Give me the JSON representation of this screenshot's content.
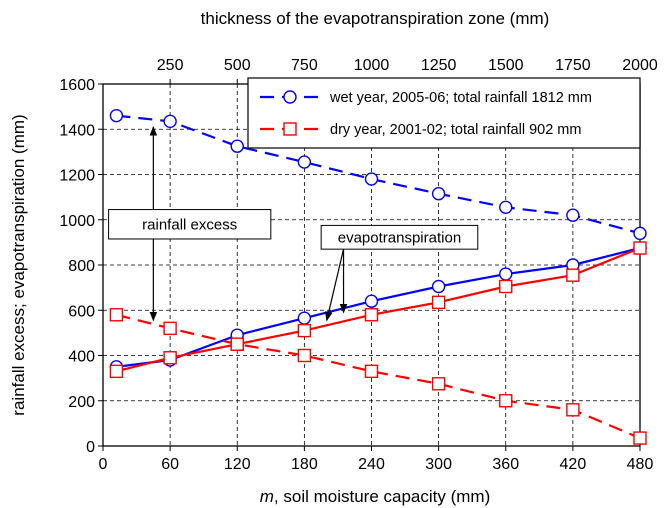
{
  "chart_data": {
    "type": "line",
    "x_top_label": "thickness of the evapotranspiration zone (mm)",
    "xlabel_italic": "m",
    "xlabel": ", soil moisture capacity (mm)",
    "ylabel": "rainfall excess; evapotranspiration  (mm)",
    "xlim": [
      0,
      480
    ],
    "ylim": [
      0,
      1600
    ],
    "top_xlim": [
      0,
      2000
    ],
    "x_ticks": [
      0,
      60,
      120,
      180,
      240,
      300,
      360,
      420,
      480
    ],
    "top_x_ticks": [
      250,
      500,
      750,
      1000,
      1250,
      1500,
      1750,
      2000
    ],
    "y_ticks": [
      0,
      200,
      400,
      600,
      800,
      1000,
      1200,
      1400,
      1600
    ],
    "grid": true,
    "legend_position": "top-right",
    "x": [
      12,
      60,
      120,
      180,
      240,
      300,
      360,
      420,
      480
    ],
    "series": [
      {
        "name": "wet year, 2005-06; total rainfall 1812 mm",
        "color": "#0000ff",
        "marker": "circle",
        "excess": [
          1460,
          1435,
          1325,
          1255,
          1180,
          1115,
          1055,
          1020,
          940
        ],
        "evapotranspiration": [
          350,
          380,
          490,
          565,
          640,
          705,
          760,
          800,
          875
        ]
      },
      {
        "name": "dry year, 2001-02; total rainfall 902 mm",
        "color": "#ff0000",
        "marker": "square",
        "excess": [
          580,
          520,
          450,
          400,
          330,
          275,
          200,
          160,
          35
        ],
        "evapotranspiration": [
          330,
          390,
          450,
          510,
          580,
          635,
          705,
          755,
          875
        ]
      }
    ],
    "annotations": {
      "excess": {
        "text": "rainfall excess",
        "arrow_x": 45,
        "arrow_top": 1410,
        "arrow_bottom": 555,
        "box_x": [
          5,
          150
        ],
        "box_y": [
          915,
          1045
        ]
      },
      "et": {
        "text": "evapotranspiration",
        "box_x": [
          195,
          335
        ],
        "box_y": [
          870,
          975
        ],
        "arrows": [
          {
            "from": [
              215,
              870
            ],
            "to": [
              200,
              555
            ]
          },
          {
            "from": [
              215,
              870
            ],
            "to": [
              215,
              590
            ]
          }
        ]
      }
    }
  }
}
